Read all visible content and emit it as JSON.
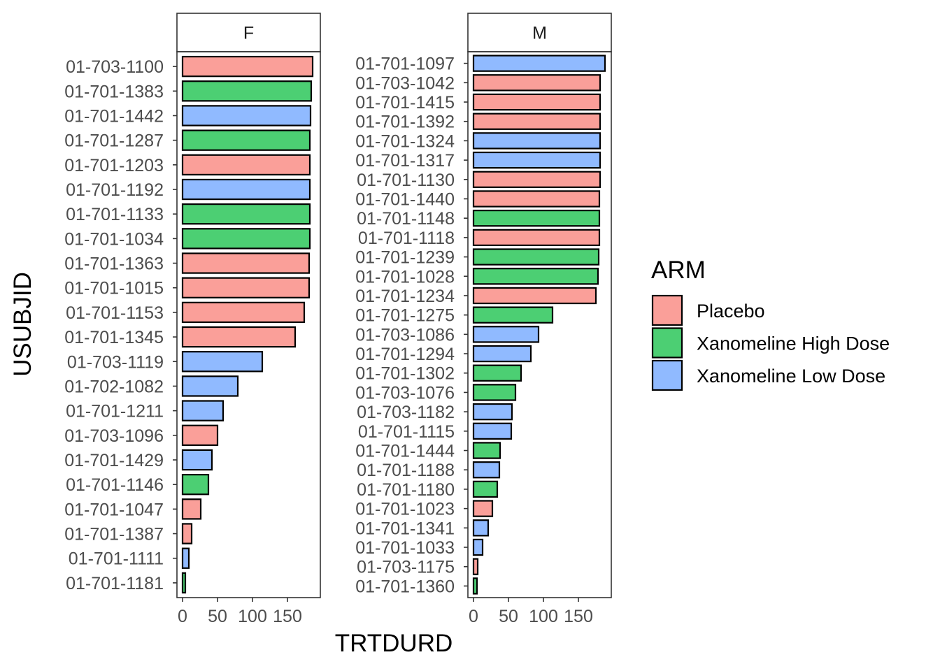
{
  "chart_data": {
    "type": "bar",
    "orientation": "horizontal",
    "xlabel": "TRTDURD",
    "ylabel": "USUBJID",
    "xlim": [
      0,
      200
    ],
    "x_ticks": [
      0,
      50,
      100,
      150
    ],
    "x_tick_labels": [
      "0",
      "50",
      "100",
      "150"
    ],
    "grid": false,
    "legend": {
      "title": "ARM",
      "placement": "right",
      "entries": [
        "Placebo",
        "Xanomeline High Dose",
        "Xanomeline Low Dose"
      ]
    },
    "colors": {
      "Placebo": "#F8766D",
      "Xanomeline High Dose": "#00BA38",
      "Xanomeline Low Dose": "#619CFF"
    },
    "panels": [
      {
        "strip": "F",
        "bars": [
          {
            "id": "01-703-1100",
            "value": 186,
            "arm": "Placebo"
          },
          {
            "id": "01-701-1383",
            "value": 184,
            "arm": "Xanomeline High Dose"
          },
          {
            "id": "01-701-1442",
            "value": 183,
            "arm": "Xanomeline Low Dose"
          },
          {
            "id": "01-701-1287",
            "value": 182,
            "arm": "Xanomeline High Dose"
          },
          {
            "id": "01-701-1203",
            "value": 182,
            "arm": "Placebo"
          },
          {
            "id": "01-701-1192",
            "value": 182,
            "arm": "Xanomeline Low Dose"
          },
          {
            "id": "01-701-1133",
            "value": 182,
            "arm": "Xanomeline High Dose"
          },
          {
            "id": "01-701-1034",
            "value": 182,
            "arm": "Xanomeline High Dose"
          },
          {
            "id": "01-701-1363",
            "value": 181,
            "arm": "Placebo"
          },
          {
            "id": "01-701-1015",
            "value": 181,
            "arm": "Placebo"
          },
          {
            "id": "01-701-1153",
            "value": 174,
            "arm": "Placebo"
          },
          {
            "id": "01-701-1345",
            "value": 161,
            "arm": "Placebo"
          },
          {
            "id": "01-703-1119",
            "value": 114,
            "arm": "Xanomeline Low Dose"
          },
          {
            "id": "01-702-1082",
            "value": 79,
            "arm": "Xanomeline Low Dose"
          },
          {
            "id": "01-701-1211",
            "value": 58,
            "arm": "Xanomeline Low Dose"
          },
          {
            "id": "01-703-1096",
            "value": 50,
            "arm": "Placebo"
          },
          {
            "id": "01-701-1429",
            "value": 42,
            "arm": "Xanomeline Low Dose"
          },
          {
            "id": "01-701-1146",
            "value": 37,
            "arm": "Xanomeline High Dose"
          },
          {
            "id": "01-701-1047",
            "value": 26,
            "arm": "Placebo"
          },
          {
            "id": "01-701-1387",
            "value": 13,
            "arm": "Placebo"
          },
          {
            "id": "01-701-1111",
            "value": 9,
            "arm": "Xanomeline Low Dose"
          },
          {
            "id": "01-701-1181",
            "value": 4,
            "arm": "Xanomeline High Dose"
          }
        ]
      },
      {
        "strip": "M",
        "bars": [
          {
            "id": "01-701-1097",
            "value": 188,
            "arm": "Xanomeline Low Dose"
          },
          {
            "id": "01-703-1042",
            "value": 181,
            "arm": "Placebo"
          },
          {
            "id": "01-701-1415",
            "value": 181,
            "arm": "Placebo"
          },
          {
            "id": "01-701-1392",
            "value": 181,
            "arm": "Placebo"
          },
          {
            "id": "01-701-1324",
            "value": 181,
            "arm": "Xanomeline Low Dose"
          },
          {
            "id": "01-701-1317",
            "value": 181,
            "arm": "Xanomeline Low Dose"
          },
          {
            "id": "01-701-1130",
            "value": 181,
            "arm": "Placebo"
          },
          {
            "id": "01-701-1440",
            "value": 180,
            "arm": "Placebo"
          },
          {
            "id": "01-701-1148",
            "value": 180,
            "arm": "Xanomeline High Dose"
          },
          {
            "id": "01-701-1118",
            "value": 180,
            "arm": "Placebo"
          },
          {
            "id": "01-701-1239",
            "value": 179,
            "arm": "Xanomeline High Dose"
          },
          {
            "id": "01-701-1028",
            "value": 178,
            "arm": "Xanomeline High Dose"
          },
          {
            "id": "01-701-1234",
            "value": 175,
            "arm": "Placebo"
          },
          {
            "id": "01-701-1275",
            "value": 113,
            "arm": "Xanomeline High Dose"
          },
          {
            "id": "01-703-1086",
            "value": 93,
            "arm": "Xanomeline Low Dose"
          },
          {
            "id": "01-701-1294",
            "value": 82,
            "arm": "Xanomeline Low Dose"
          },
          {
            "id": "01-701-1302",
            "value": 68,
            "arm": "Xanomeline High Dose"
          },
          {
            "id": "01-703-1076",
            "value": 60,
            "arm": "Xanomeline High Dose"
          },
          {
            "id": "01-703-1182",
            "value": 55,
            "arm": "Xanomeline Low Dose"
          },
          {
            "id": "01-701-1115",
            "value": 54,
            "arm": "Xanomeline Low Dose"
          },
          {
            "id": "01-701-1444",
            "value": 38,
            "arm": "Xanomeline High Dose"
          },
          {
            "id": "01-701-1188",
            "value": 37,
            "arm": "Xanomeline Low Dose"
          },
          {
            "id": "01-701-1180",
            "value": 34,
            "arm": "Xanomeline High Dose"
          },
          {
            "id": "01-701-1023",
            "value": 27,
            "arm": "Placebo"
          },
          {
            "id": "01-701-1341",
            "value": 21,
            "arm": "Xanomeline Low Dose"
          },
          {
            "id": "01-701-1033",
            "value": 13,
            "arm": "Xanomeline Low Dose"
          },
          {
            "id": "01-703-1175",
            "value": 6,
            "arm": "Placebo"
          },
          {
            "id": "01-701-1360",
            "value": 5,
            "arm": "Xanomeline High Dose"
          }
        ]
      }
    ]
  }
}
